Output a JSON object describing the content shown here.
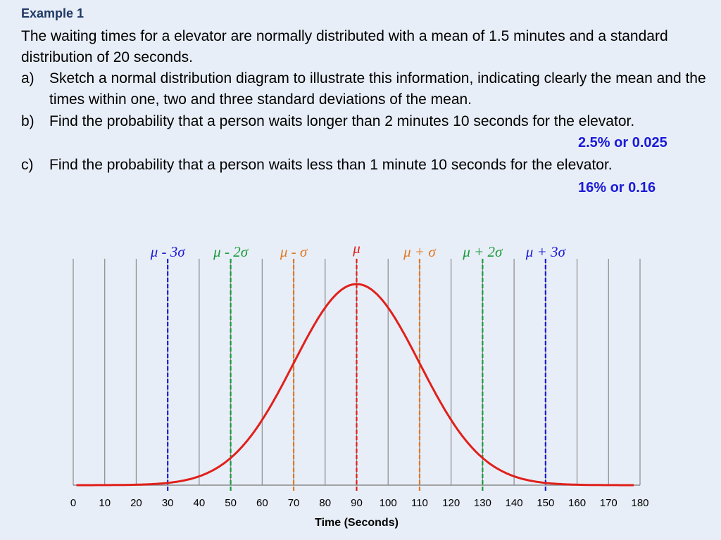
{
  "example": {
    "heading": "Example 1",
    "intro": "The waiting times for a elevator are normally distributed with a mean of 1.5 minutes and a standard distribution of 20 seconds.",
    "questions": [
      {
        "letter": "a)",
        "text": "Sketch a normal distribution diagram to illustrate this information, indicating clearly the mean and the times within one, two and three standard deviations of the mean."
      },
      {
        "letter": "b)",
        "text": "Find the probability that a person waits longer than 2 minutes 10 seconds for the elevator.",
        "answer": "2.5% or 0.025"
      },
      {
        "letter": "c)",
        "text": "Find the probability that a person waits less than 1 minute 10 seconds for the elevator.",
        "answer": "16% or 0.16"
      }
    ]
  },
  "chart_data": {
    "type": "line",
    "xlabel": "Time (Seconds)",
    "xlim": [
      0,
      180
    ],
    "x_ticks": [
      0,
      10,
      20,
      30,
      40,
      50,
      60,
      70,
      80,
      90,
      100,
      110,
      120,
      130,
      140,
      150,
      160,
      170,
      180
    ],
    "grid": true,
    "curve": {
      "color": "#e0201b",
      "mean": 90,
      "sd": 20,
      "x_range": [
        1,
        178
      ]
    },
    "markers": [
      {
        "x": 30,
        "label": "μ - 3σ",
        "color": "#1a1ad8"
      },
      {
        "x": 50,
        "label": "μ - 2σ",
        "color": "#1a9a3a"
      },
      {
        "x": 70,
        "label": "μ - σ",
        "color": "#e07820"
      },
      {
        "x": 90,
        "label": "μ",
        "color": "#e0201b"
      },
      {
        "x": 110,
        "label": "μ + σ",
        "color": "#e07820"
      },
      {
        "x": 130,
        "label": "μ + 2σ",
        "color": "#1a9a3a"
      },
      {
        "x": 150,
        "label": "μ + 3σ",
        "color": "#1a1ad8"
      }
    ]
  }
}
